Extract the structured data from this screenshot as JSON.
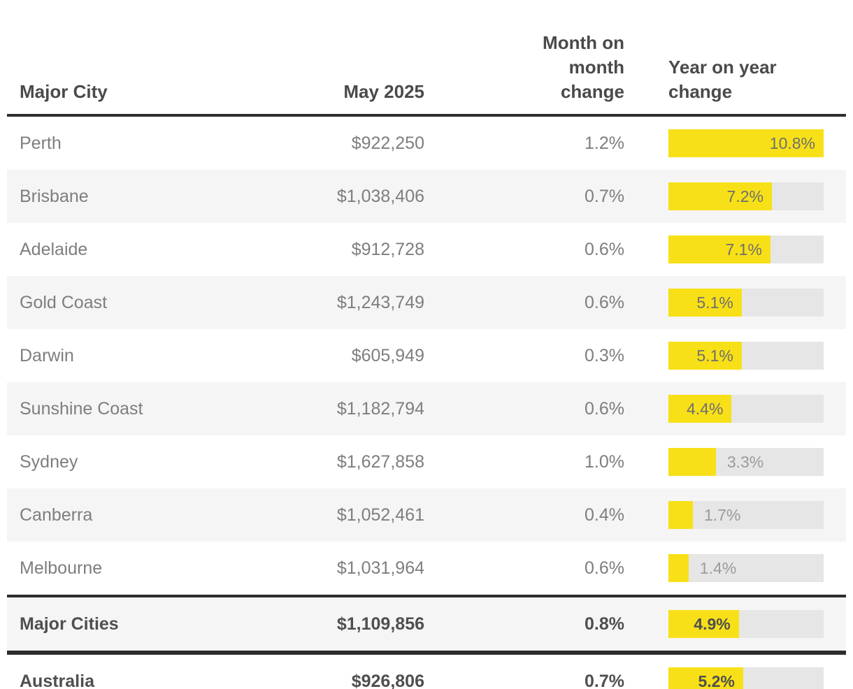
{
  "header": {
    "col_city": "Major City",
    "col_value": "May 2025",
    "col_mom": "Month on month change",
    "col_yoy": "Year on year change"
  },
  "bar": {
    "scale_max": 10.8,
    "label_inside_min": 4.0,
    "fill_color": "#f7e017",
    "track_color": "#e6e6e6"
  },
  "rows": [
    {
      "city": "Perth",
      "value": "$922,250",
      "mom": "1.2%",
      "yoy": 10.8,
      "yoy_label": "10.8%",
      "bold": false
    },
    {
      "city": "Brisbane",
      "value": "$1,038,406",
      "mom": "0.7%",
      "yoy": 7.2,
      "yoy_label": "7.2%",
      "bold": false
    },
    {
      "city": "Adelaide",
      "value": "$912,728",
      "mom": "0.6%",
      "yoy": 7.1,
      "yoy_label": "7.1%",
      "bold": false
    },
    {
      "city": "Gold Coast",
      "value": "$1,243,749",
      "mom": "0.6%",
      "yoy": 5.1,
      "yoy_label": "5.1%",
      "bold": false
    },
    {
      "city": "Darwin",
      "value": "$605,949",
      "mom": "0.3%",
      "yoy": 5.1,
      "yoy_label": "5.1%",
      "bold": false
    },
    {
      "city": "Sunshine Coast",
      "value": "$1,182,794",
      "mom": "0.6%",
      "yoy": 4.4,
      "yoy_label": "4.4%",
      "bold": false
    },
    {
      "city": "Sydney",
      "value": "$1,627,858",
      "mom": "1.0%",
      "yoy": 3.3,
      "yoy_label": "3.3%",
      "bold": false
    },
    {
      "city": "Canberra",
      "value": "$1,052,461",
      "mom": "0.4%",
      "yoy": 1.7,
      "yoy_label": "1.7%",
      "bold": false
    },
    {
      "city": "Melbourne",
      "value": "$1,031,964",
      "mom": "0.6%",
      "yoy": 1.4,
      "yoy_label": "1.4%",
      "bold": false
    },
    {
      "city": "Major Cities",
      "value": "$1,109,856",
      "mom": "0.8%",
      "yoy": 4.9,
      "yoy_label": "4.9%",
      "bold": true
    },
    {
      "city": "Australia",
      "value": "$926,806",
      "mom": "0.7%",
      "yoy": 5.2,
      "yoy_label": "5.2%",
      "bold": true
    }
  ],
  "chart_data": {
    "type": "bar",
    "title": "Major city property values, May 2025",
    "categories": [
      "Perth",
      "Brisbane",
      "Adelaide",
      "Gold Coast",
      "Darwin",
      "Sunshine Coast",
      "Sydney",
      "Canberra",
      "Melbourne",
      "Major Cities",
      "Australia"
    ],
    "series": [
      {
        "name": "May 2025 value ($)",
        "values": [
          922250,
          1038406,
          912728,
          1243749,
          605949,
          1182794,
          1627858,
          1052461,
          1031964,
          1109856,
          926806
        ]
      },
      {
        "name": "Month on month change (%)",
        "values": [
          1.2,
          0.7,
          0.6,
          0.6,
          0.3,
          0.6,
          1.0,
          0.4,
          0.6,
          0.8,
          0.7
        ]
      },
      {
        "name": "Year on year change (%)",
        "values": [
          10.8,
          7.2,
          7.1,
          5.1,
          5.1,
          4.4,
          3.3,
          1.7,
          1.4,
          4.9,
          5.2
        ]
      }
    ],
    "xlabel": "Major City",
    "ylabel": "Year on year change (%)",
    "ylim": [
      0,
      10.8
    ],
    "grid": false,
    "legend_position": "none",
    "orientation": "horizontal",
    "bar_color": "#f7e017"
  },
  "colors": {
    "accent_yellow": "#f7e017",
    "bar_track_gray": "#e6e6e6",
    "row_stripe_gray": "#f5f5f5",
    "divider_dark": "#2d2d2d",
    "header_text": "#4a4a4a",
    "body_text": "#7e7e7e"
  }
}
